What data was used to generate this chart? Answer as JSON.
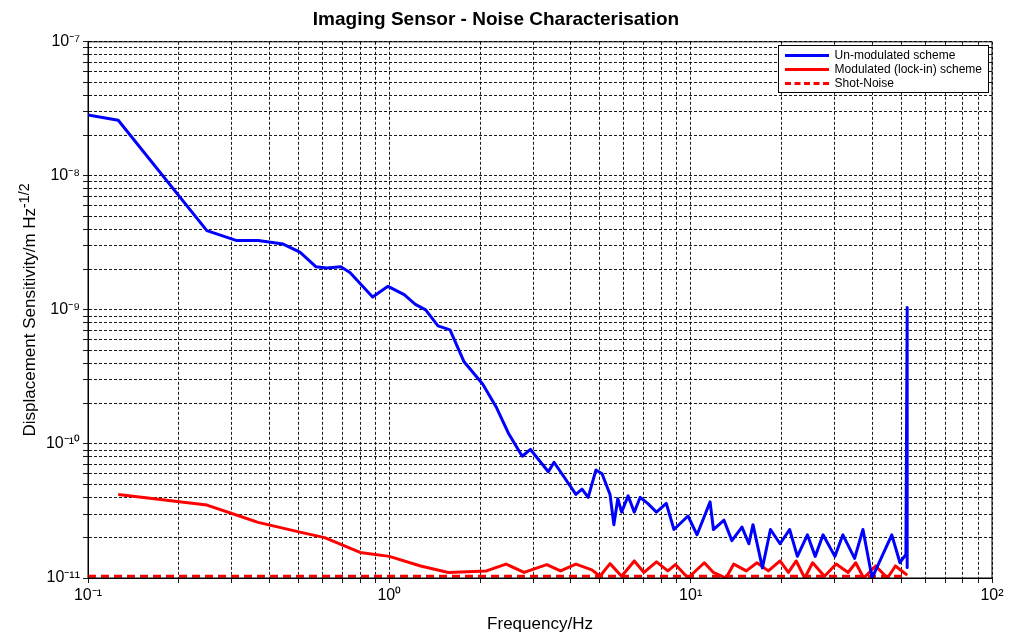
{
  "chart_data": {
    "type": "line",
    "title": "Imaging Sensor - Noise Characterisation",
    "xlabel": "Frequency/Hz",
    "ylabel": "Displacement Sensitivity/m Hz$^{-1/2}$",
    "log": "xy",
    "grid": true,
    "legend": "top right",
    "marker": "none",
    "xlim": [
      0.1,
      100
    ],
    "ylim": [
      1e-11,
      1e-07
    ],
    "xticks": [
      {
        "value": 0.1,
        "label": "10⁻¹"
      },
      {
        "value": 0.2,
        "label": null
      },
      {
        "value": 0.3,
        "label": null
      },
      {
        "value": 0.4,
        "label": null
      },
      {
        "value": 0.5,
        "label": null
      },
      {
        "value": 0.6,
        "label": null
      },
      {
        "value": 0.7,
        "label": null
      },
      {
        "value": 0.8,
        "label": null
      },
      {
        "value": 0.9,
        "label": null
      },
      {
        "value": 1,
        "label": "10⁰"
      },
      {
        "value": 2,
        "label": null
      },
      {
        "value": 3,
        "label": null
      },
      {
        "value": 4,
        "label": null
      },
      {
        "value": 5,
        "label": null
      },
      {
        "value": 6,
        "label": null
      },
      {
        "value": 7,
        "label": null
      },
      {
        "value": 8,
        "label": null
      },
      {
        "value": 9,
        "label": null
      },
      {
        "value": 10,
        "label": "10¹"
      },
      {
        "value": 20,
        "label": null
      },
      {
        "value": 30,
        "label": null
      },
      {
        "value": 40,
        "label": null
      },
      {
        "value": 50,
        "label": null
      },
      {
        "value": 60,
        "label": null
      },
      {
        "value": 70,
        "label": null
      },
      {
        "value": 80,
        "label": null
      },
      {
        "value": 90,
        "label": null
      },
      {
        "value": 100,
        "label": "10²"
      }
    ],
    "yticks": [
      {
        "value": 1e-11,
        "label": "10⁻¹¹"
      },
      {
        "value": 2e-11,
        "label": null
      },
      {
        "value": 3e-11,
        "label": null
      },
      {
        "value": 4e-11,
        "label": null
      },
      {
        "value": 5e-11,
        "label": null
      },
      {
        "value": 6e-11,
        "label": null
      },
      {
        "value": 7e-11,
        "label": null
      },
      {
        "value": 8e-11,
        "label": null
      },
      {
        "value": 9e-11,
        "label": null
      },
      {
        "value": 1e-10,
        "label": "10⁻¹⁰"
      },
      {
        "value": 2e-10,
        "label": null
      },
      {
        "value": 3e-10,
        "label": null
      },
      {
        "value": 4e-10,
        "label": null
      },
      {
        "value": 5e-10,
        "label": null
      },
      {
        "value": 6e-10,
        "label": null
      },
      {
        "value": 7e-10,
        "label": null
      },
      {
        "value": 8e-10,
        "label": null
      },
      {
        "value": 9e-10,
        "label": null
      },
      {
        "value": 1e-09,
        "label": "10⁻⁹"
      },
      {
        "value": 2e-09,
        "label": null
      },
      {
        "value": 3e-09,
        "label": null
      },
      {
        "value": 4e-09,
        "label": null
      },
      {
        "value": 5e-09,
        "label": null
      },
      {
        "value": 6e-09,
        "label": null
      },
      {
        "value": 7e-09,
        "label": null
      },
      {
        "value": 8e-09,
        "label": null
      },
      {
        "value": 9e-09,
        "label": null
      },
      {
        "value": 1e-08,
        "label": "10⁻⁸"
      },
      {
        "value": 2e-08,
        "label": null
      },
      {
        "value": 3e-08,
        "label": null
      },
      {
        "value": 4e-08,
        "label": null
      },
      {
        "value": 5e-08,
        "label": null
      },
      {
        "value": 6e-08,
        "label": null
      },
      {
        "value": 7e-08,
        "label": null
      },
      {
        "value": 8e-08,
        "label": null
      },
      {
        "value": 9e-08,
        "label": null
      },
      {
        "value": 1e-07,
        "label": "10⁻⁷"
      }
    ],
    "series": [
      {
        "name": "Un-modulated scheme",
        "color": "#0000ff",
        "line_style": "solid",
        "x": [
          0.1,
          0.126,
          0.248,
          0.31,
          0.367,
          0.444,
          0.505,
          0.57,
          0.62,
          0.69,
          0.74,
          0.88,
          0.99,
          1.12,
          1.22,
          1.32,
          1.45,
          1.59,
          1.77,
          2.04,
          2.27,
          2.49,
          2.76,
          2.94,
          3.37,
          3.52,
          4.16,
          4.36,
          4.57,
          4.85,
          5.08,
          5.4,
          5.56,
          5.73,
          5.9,
          6.2,
          6.5,
          6.8,
          7.2,
          7.7,
          8.3,
          8.8,
          9.8,
          10.5,
          11.6,
          11.9,
          12.9,
          13.7,
          14.8,
          15.6,
          16.1,
          17.3,
          18.4,
          19.8,
          21.3,
          22.6,
          24.4,
          25.9,
          27.5,
          30.1,
          32,
          35,
          37.3,
          40,
          46.5,
          49.5,
          51.8,
          52.3,
          52.3
        ],
        "values": [
          2.85e-08,
          2.6e-08,
          3.9e-09,
          3.3e-09,
          3.3e-09,
          3.1e-09,
          2.7e-09,
          2.1e-09,
          2.05e-09,
          2.1e-09,
          1.9e-09,
          1.25e-09,
          1.5e-09,
          1.3e-09,
          1.1e-09,
          1e-09,
          7.6e-10,
          7.1e-10,
          4.1e-10,
          2.8e-10,
          1.86e-10,
          1.19e-10,
          8.1e-11,
          9.1e-11,
          6.2e-11,
          7.3e-11,
          4.2e-11,
          4.6e-11,
          4e-11,
          6.4e-11,
          6e-11,
          4.2e-11,
          2.5e-11,
          3.9e-11,
          3.1e-11,
          4.1e-11,
          3.1e-11,
          4e-11,
          3.6e-11,
          3.1e-11,
          3.6e-11,
          2.3e-11,
          2.9e-11,
          2.1e-11,
          3.7e-11,
          2.3e-11,
          2.7e-11,
          1.9e-11,
          2.4e-11,
          1.8e-11,
          2.5e-11,
          1.19e-11,
          2.3e-11,
          1.8e-11,
          2.3e-11,
          1.45e-11,
          2.1e-11,
          1.45e-11,
          2.1e-11,
          1.45e-11,
          2.1e-11,
          1.4e-11,
          2.3e-11,
          1e-11,
          2.1e-11,
          1.3e-11,
          1.5e-11,
          1.04e-09,
          1.2e-11
        ]
      },
      {
        "name": "Modulated (lock-in) scheme",
        "color": "#ff0000",
        "line_style": "solid",
        "x": [
          0.126,
          0.248,
          0.367,
          0.505,
          0.61,
          0.8,
          1.0,
          1.27,
          1.57,
          2.1,
          2.44,
          2.8,
          3.33,
          3.7,
          4.16,
          4.7,
          5.0,
          5.4,
          5.9,
          6.5,
          7.0,
          7.7,
          8.4,
          8.9,
          9.8,
          11.1,
          11.9,
          13.1,
          13.9,
          15.3,
          16.6,
          18.1,
          19.8,
          21.1,
          22.4,
          23.9,
          25.4,
          27.8,
          30.4,
          33.3,
          35.3,
          37.5,
          41.1,
          45,
          47.8,
          52.3
        ],
        "values": [
          4.2e-11,
          3.5e-11,
          2.6e-11,
          2.2e-11,
          2e-11,
          1.55e-11,
          1.45e-11,
          1.23e-11,
          1.1e-11,
          1.13e-11,
          1.27e-11,
          1.1e-11,
          1.26e-11,
          1.13e-11,
          1.27e-11,
          1.15e-11,
          1.03e-11,
          1.28e-11,
          1.03e-11,
          1.34e-11,
          1.1e-11,
          1.32e-11,
          1.13e-11,
          1.26e-11,
          1e-11,
          1.3e-11,
          1.1e-11,
          1e-11,
          1.27e-11,
          1.13e-11,
          1.3e-11,
          1.13e-11,
          1.34e-11,
          1.1e-11,
          1.34e-11,
          1e-11,
          1.3e-11,
          1.03e-11,
          1.27e-11,
          1.1e-11,
          1.3e-11,
          1e-11,
          1.23e-11,
          1e-11,
          1.23e-11,
          1.05e-11
        ]
      },
      {
        "name": "Shot-Noise",
        "color": "#ff0000",
        "line_style": "dashed",
        "x": [
          0.1,
          52.3
        ],
        "values": [
          1.03e-11,
          1.03e-11
        ]
      }
    ]
  }
}
